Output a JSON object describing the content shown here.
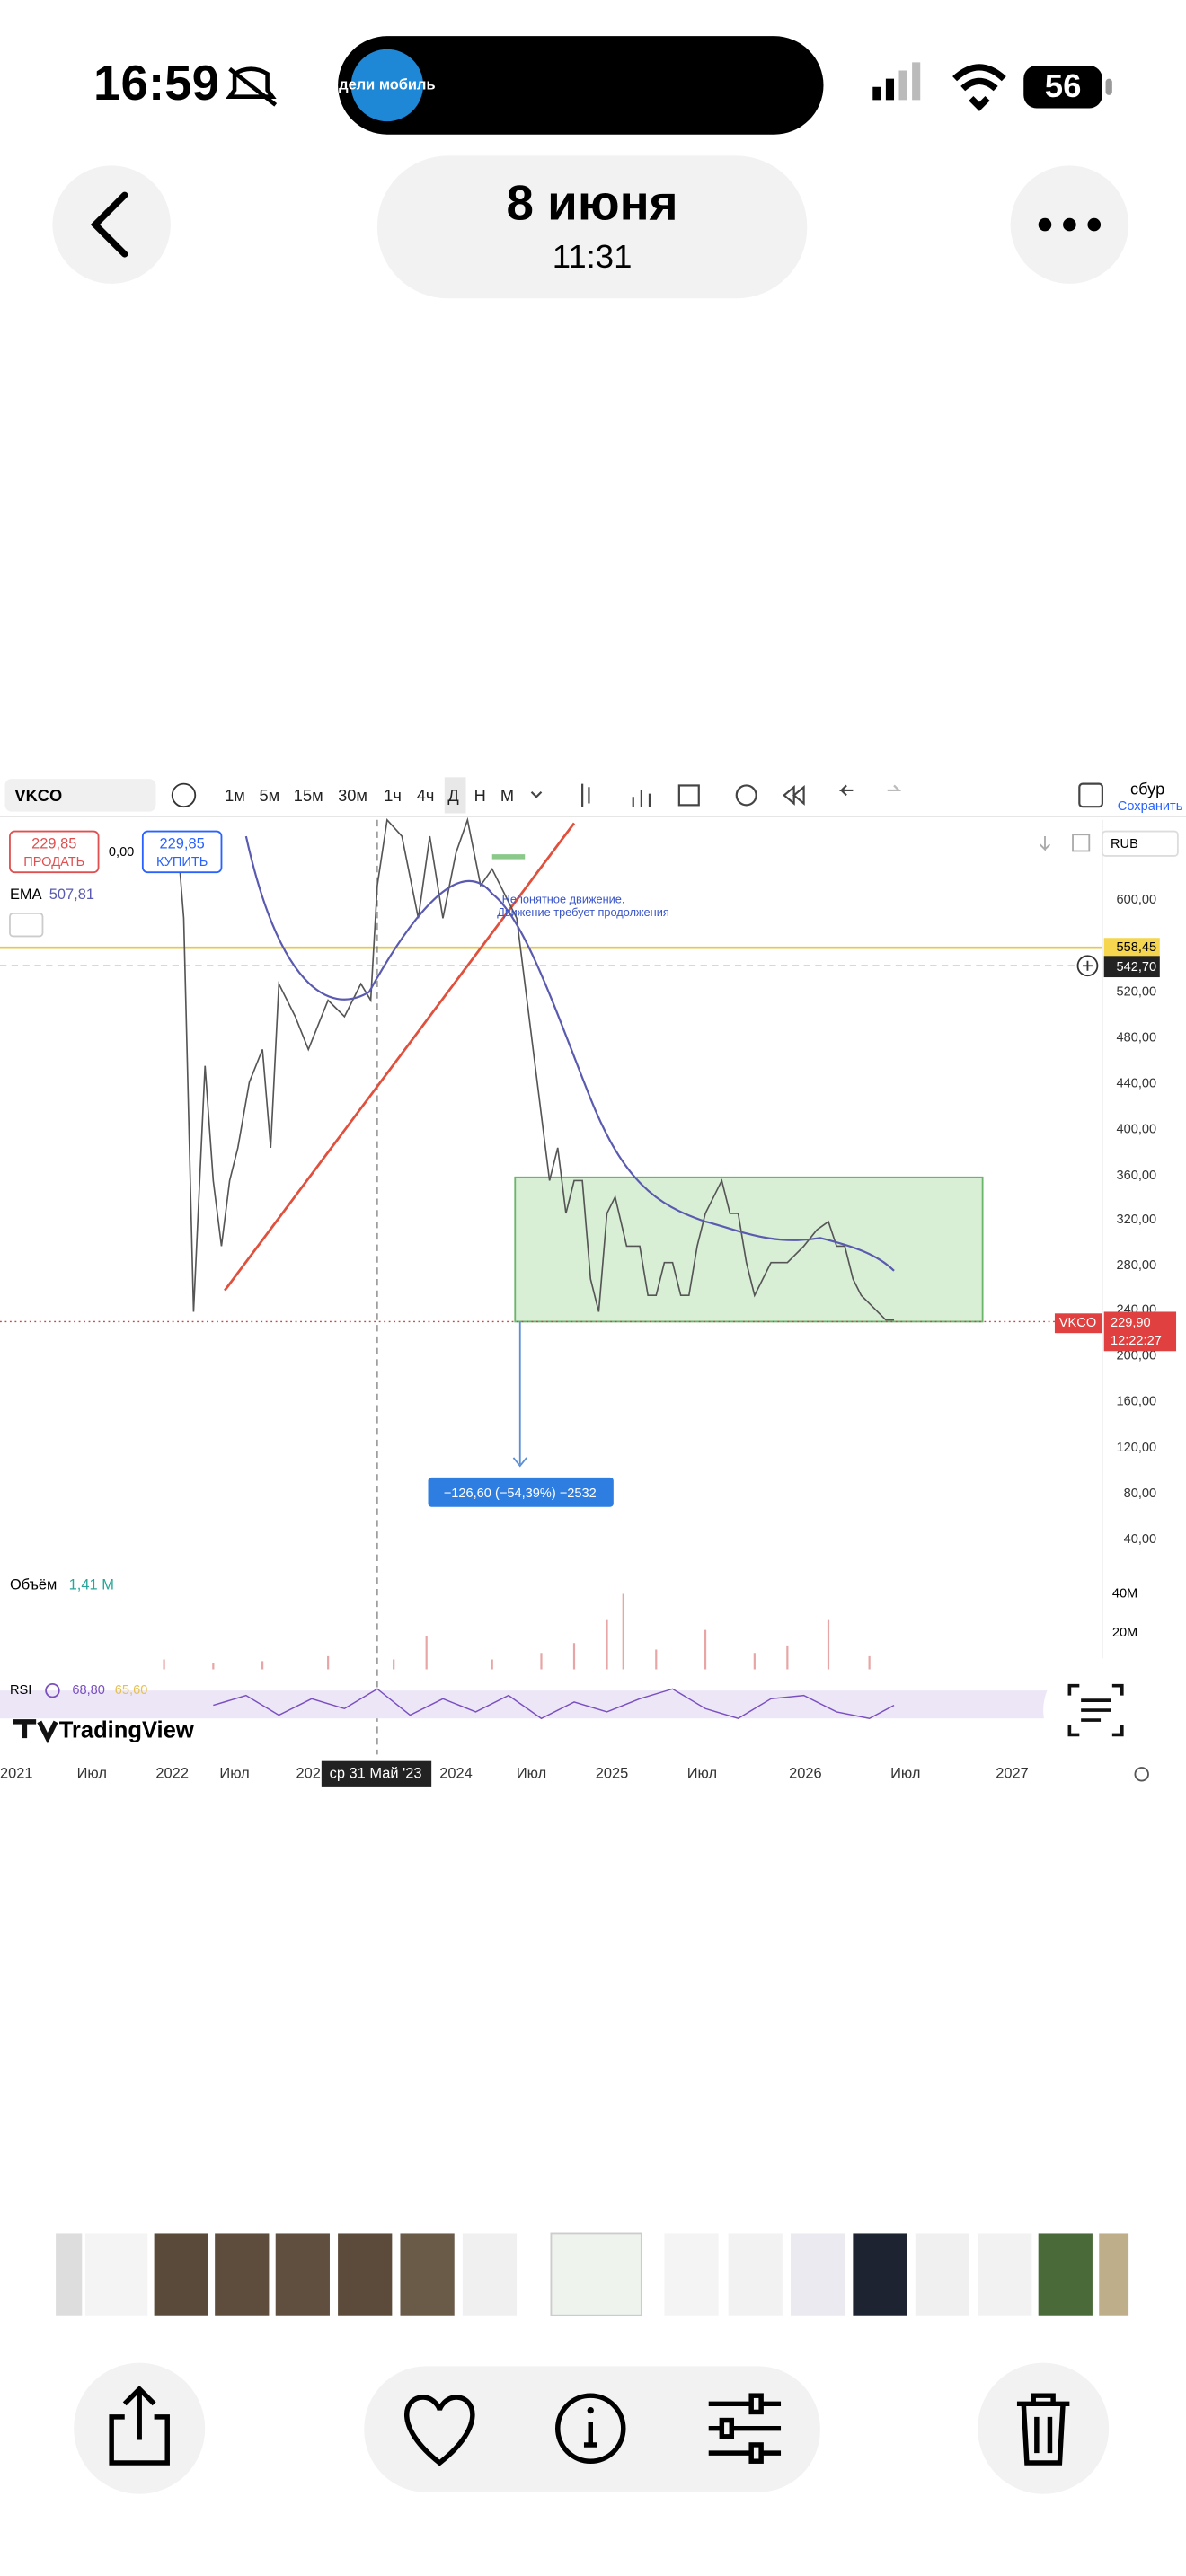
{
  "status_bar": {
    "time": "16:59",
    "island_app": "дели мобиль",
    "battery": "56"
  },
  "header": {
    "date": "8 июня",
    "time": "11:31"
  },
  "screenshot": {
    "toolbar": {
      "symbol": "VKCO",
      "intervals": [
        "1м",
        "5м",
        "15м",
        "30м",
        "1ч",
        "4ч",
        "Д",
        "Н",
        "М"
      ],
      "save_top": "сбур",
      "save_bottom": "Сохранить"
    },
    "sell": {
      "price": "229,85",
      "label": "ПРОДАТЬ"
    },
    "spread": "0,00",
    "buy": {
      "price": "229,85",
      "label": "КУПИТЬ"
    },
    "ema": {
      "label": "EMA",
      "value": "507,81"
    },
    "currency": "RUB",
    "price_axis": [
      "600,00",
      "520,00",
      "480,00",
      "440,00",
      "400,00",
      "360,00",
      "320,00",
      "280,00",
      "240,00",
      "200,00",
      "160,00",
      "120,00",
      "80,00",
      "40,00"
    ],
    "price_tags": {
      "yellow": "558,45",
      "crosshair": "542,70",
      "symbol": "VKCO",
      "last": "229,90",
      "countdown": "12:22:27"
    },
    "annotation": [
      "Непонятное движение.",
      "Движение требует продолжения"
    ],
    "measure": "−126,60 (−54,39%) −2532",
    "volume": {
      "label": "Объём",
      "value": "1,41 M",
      "axis": [
        "40M",
        "20M"
      ]
    },
    "rsi": {
      "label": "RSI",
      "value": "68,80",
      "ma": "65,60"
    },
    "logo": "TradingView",
    "time_axis": [
      "2021",
      "Июл",
      "2022",
      "Июл",
      "202",
      "ср 31 Май '23",
      "2024",
      "Июл",
      "2025",
      "Июл",
      "2026",
      "Июл",
      "2027"
    ]
  }
}
